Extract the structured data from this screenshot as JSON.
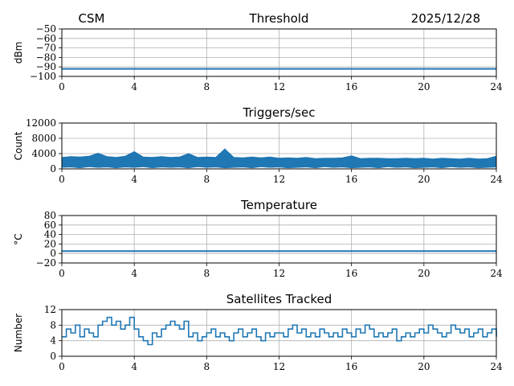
{
  "header": {
    "left": "CSM",
    "right": "2025/12/28"
  },
  "chart_data": [
    {
      "type": "line",
      "title": "Threshold",
      "xlabel": "",
      "ylabel": "dBm",
      "xlim": [
        0,
        24
      ],
      "ylim": [
        -100,
        -50
      ],
      "xticks": [
        0,
        4,
        8,
        12,
        16,
        20,
        24
      ],
      "xtick_labels": [
        "0",
        "4",
        "8",
        "12",
        "16",
        "20",
        "24"
      ],
      "yticks": [
        -100,
        -90,
        -80,
        -70,
        -60,
        -50
      ],
      "ytick_labels": [
        "−100",
        "−90",
        "−80",
        "−70",
        "−60",
        "−50"
      ],
      "grid": true,
      "color": "#1f77b4",
      "series": [
        {
          "x": [
            0,
            2,
            4,
            6,
            8,
            10,
            12,
            14,
            16,
            18,
            20,
            22,
            24
          ],
          "y": [
            -92,
            -92,
            -92,
            -92,
            -92,
            -92,
            -92,
            -92,
            -92,
            -92,
            -92,
            -92,
            -92
          ]
        }
      ]
    },
    {
      "type": "line",
      "title": "Triggers/sec",
      "xlabel": "",
      "ylabel": "Count",
      "xlim": [
        0,
        24
      ],
      "ylim": [
        0,
        12000
      ],
      "xticks": [
        0,
        4,
        8,
        12,
        16,
        20,
        24
      ],
      "xtick_labels": [
        "0",
        "4",
        "8",
        "12",
        "16",
        "20",
        "24"
      ],
      "yticks": [
        0,
        4000,
        8000,
        12000
      ],
      "ytick_labels": [
        "0",
        "4000",
        "8000",
        "12000"
      ],
      "grid": true,
      "color": "#1f77b4",
      "series": [
        {
          "x": [
            0,
            0.5,
            1,
            1.5,
            2,
            2.5,
            3,
            3.5,
            4,
            4.5,
            5,
            5.5,
            6,
            6.5,
            7,
            7.5,
            8,
            8.5,
            9,
            9.5,
            10,
            10.5,
            11,
            11.5,
            12,
            12.5,
            13,
            13.5,
            14,
            14.5,
            15,
            15.5,
            16,
            16.5,
            17,
            17.5,
            18,
            18.5,
            19,
            19.5,
            20,
            20.5,
            21,
            21.5,
            22,
            22.5,
            23,
            23.5,
            24
          ],
          "y": [
            1800,
            2200,
            2600,
            1900,
            3800,
            2400,
            2000,
            2700,
            4200,
            2300,
            2100,
            2600,
            1900,
            2500,
            3600,
            2200,
            2400,
            2000,
            5100,
            2300,
            2100,
            2500,
            2000,
            2800,
            1900,
            2300,
            2100,
            2400,
            1800,
            2200,
            2000,
            2600,
            3200,
            1900,
            2100,
            2300,
            1800,
            2000,
            2200,
            1900,
            2100,
            1800,
            2300,
            2000,
            1900,
            2200,
            1800,
            2100,
            3100
          ],
          "band_low": [
            400,
            500,
            300,
            600,
            400,
            500,
            300,
            500,
            400,
            600,
            300,
            500,
            400,
            500,
            300,
            600,
            400,
            500,
            300,
            400,
            500,
            300,
            600,
            400,
            500,
            300,
            400,
            500,
            300,
            600,
            400,
            500,
            300,
            400,
            500,
            300,
            600,
            400,
            500,
            300,
            400,
            500,
            300,
            600,
            400,
            500,
            300,
            400,
            500
          ],
          "band_high": [
            3000,
            3200,
            3100,
            3300,
            4100,
            3200,
            3000,
            3300,
            4500,
            3100,
            3000,
            3200,
            3000,
            3100,
            4000,
            3000,
            3100,
            3000,
            5200,
            3000,
            2900,
            3100,
            2900,
            3100,
            2800,
            2900,
            2800,
            3000,
            2700,
            2800,
            2800,
            2900,
            3400,
            2700,
            2800,
            2800,
            2700,
            2700,
            2800,
            2700,
            2800,
            2600,
            2800,
            2700,
            2600,
            2800,
            2600,
            2700,
            3300
          ]
        }
      ]
    },
    {
      "type": "line",
      "title": "Temperature",
      "xlabel": "",
      "ylabel": "°C",
      "xlim": [
        0,
        24
      ],
      "ylim": [
        -20,
        80
      ],
      "xticks": [
        0,
        4,
        8,
        12,
        16,
        20,
        24
      ],
      "xtick_labels": [
        "0",
        "4",
        "8",
        "12",
        "16",
        "20",
        "24"
      ],
      "yticks": [
        -20,
        0,
        20,
        40,
        60,
        80
      ],
      "ytick_labels": [
        "−20",
        "0",
        "20",
        "40",
        "60",
        "80"
      ],
      "grid": true,
      "color": "#1f77b4",
      "series": [
        {
          "x": [
            0,
            2,
            4,
            6,
            8,
            10,
            12,
            14,
            16,
            18,
            20,
            22,
            24
          ],
          "y": [
            5,
            5,
            5,
            5,
            5,
            5,
            5,
            5,
            5,
            5,
            5,
            5,
            5
          ]
        }
      ]
    },
    {
      "type": "line",
      "title": "Satellites Tracked",
      "xlabel": "",
      "ylabel": "Number",
      "xlim": [
        0,
        24
      ],
      "ylim": [
        0,
        12
      ],
      "xticks": [
        0,
        4,
        8,
        12,
        16,
        20,
        24
      ],
      "xtick_labels": [
        "0",
        "4",
        "8",
        "12",
        "16",
        "20",
        "24"
      ],
      "yticks": [
        0,
        4,
        8,
        12
      ],
      "ytick_labels": [
        "0",
        "4",
        "8",
        "12"
      ],
      "grid": true,
      "color": "#1f77b4",
      "series": [
        {
          "x": [
            0,
            0.25,
            0.5,
            0.75,
            1,
            1.25,
            1.5,
            1.75,
            2,
            2.25,
            2.5,
            2.75,
            3,
            3.25,
            3.5,
            3.75,
            4,
            4.25,
            4.5,
            4.75,
            5,
            5.25,
            5.5,
            5.75,
            6,
            6.25,
            6.5,
            6.75,
            7,
            7.25,
            7.5,
            7.75,
            8,
            8.25,
            8.5,
            8.75,
            9,
            9.25,
            9.5,
            9.75,
            10,
            10.25,
            10.5,
            10.75,
            11,
            11.25,
            11.5,
            11.75,
            12,
            12.25,
            12.5,
            12.75,
            13,
            13.25,
            13.5,
            13.75,
            14,
            14.25,
            14.5,
            14.75,
            15,
            15.25,
            15.5,
            15.75,
            16,
            16.25,
            16.5,
            16.75,
            17,
            17.25,
            17.5,
            17.75,
            18,
            18.25,
            18.5,
            18.75,
            19,
            19.25,
            19.5,
            19.75,
            20,
            20.25,
            20.5,
            20.75,
            21,
            21.25,
            21.5,
            21.75,
            22,
            22.25,
            22.5,
            22.75,
            23,
            23.25,
            23.5,
            23.75,
            24
          ],
          "y": [
            5,
            7,
            6,
            8,
            5,
            7,
            6,
            5,
            8,
            9,
            10,
            8,
            9,
            7,
            8,
            10,
            7,
            5,
            4,
            3,
            6,
            5,
            7,
            8,
            9,
            8,
            7,
            9,
            5,
            6,
            4,
            5,
            6,
            7,
            5,
            6,
            5,
            4,
            6,
            7,
            5,
            6,
            7,
            5,
            4,
            6,
            5,
            6,
            6,
            5,
            7,
            8,
            6,
            7,
            5,
            6,
            5,
            7,
            6,
            5,
            6,
            5,
            7,
            6,
            5,
            7,
            6,
            8,
            7,
            5,
            6,
            5,
            6,
            7,
            4,
            5,
            6,
            5,
            6,
            7,
            6,
            8,
            7,
            6,
            5,
            6,
            8,
            7,
            6,
            7,
            5,
            6,
            7,
            5,
            6,
            7,
            5
          ]
        }
      ]
    }
  ]
}
